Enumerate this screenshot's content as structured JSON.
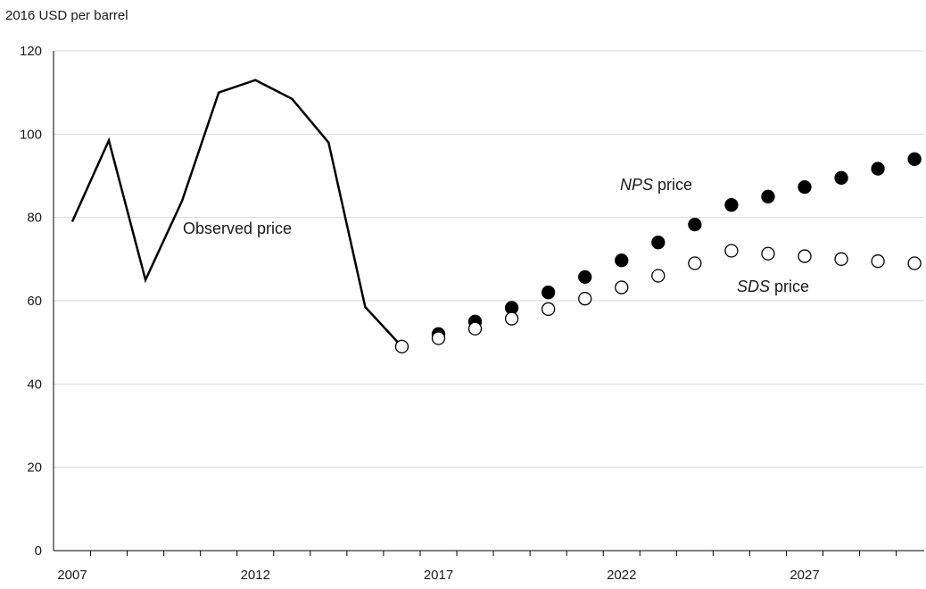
{
  "chart_data": {
    "type": "line",
    "unit_label": "2016 USD per barrel",
    "xlim": [
      2007,
      2030
    ],
    "ylim": [
      0,
      120
    ],
    "y_ticks": [
      0,
      20,
      40,
      60,
      80,
      100,
      120
    ],
    "x_tick_labels": [
      2007,
      2012,
      2017,
      2022,
      2027
    ],
    "grid": "horizontal",
    "colors": {
      "line": "#000000",
      "grid": "#d9d9d9",
      "axis": "#000000"
    },
    "series": [
      {
        "label": "Observed price",
        "marker": "none",
        "x": [
          2007,
          2008,
          2009,
          2010,
          2011,
          2012,
          2013,
          2014,
          2015,
          2016
        ],
        "y": [
          79,
          98.5,
          65,
          84,
          110,
          113,
          108.5,
          98,
          58.5,
          49
        ]
      },
      {
        "label": "NPS price",
        "label_italic_part": "NPS",
        "label_rest": " price",
        "marker": "filled-circle",
        "x": [
          2017,
          2018,
          2019,
          2020,
          2021,
          2022,
          2023,
          2024,
          2025,
          2026,
          2027,
          2028,
          2029,
          2030
        ],
        "y": [
          52,
          55,
          58.3,
          62,
          65.7,
          69.7,
          74,
          78.3,
          83,
          85,
          87.3,
          89.5,
          91.7,
          94
        ]
      },
      {
        "label": "SDS price",
        "label_italic_part": "SDS",
        "label_rest": " price",
        "marker": "open-circle",
        "x": [
          2016,
          2017,
          2018,
          2019,
          2020,
          2021,
          2022,
          2023,
          2024,
          2025,
          2026,
          2027,
          2028,
          2029,
          2030
        ],
        "y": [
          49,
          51,
          53.3,
          55.7,
          58,
          60.5,
          63.2,
          66,
          69,
          72,
          71.3,
          70.7,
          70,
          69.5,
          69
        ]
      }
    ]
  }
}
